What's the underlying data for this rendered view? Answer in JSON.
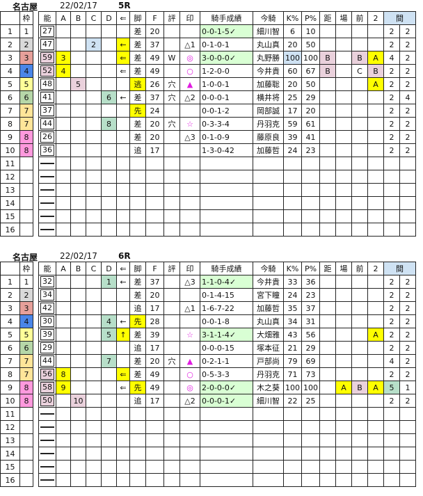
{
  "headers": [
    "",
    "枠",
    "",
    "能",
    "A",
    "B",
    "C",
    "D",
    "⇐",
    "脚",
    "F",
    "評",
    "印",
    "騎手成績",
    "今騎",
    "K%",
    "P%",
    "距",
    "場",
    "前",
    "2",
    "間"
  ],
  "colors": {
    "header_kan": "#cfe2f3",
    "waku": {
      "1": "#ffffff",
      "2": "#d9d9d9",
      "3": "#e6a09a",
      "4": "#4a86e8",
      "5": "#ffff99",
      "6": "#b6d7a8",
      "7": "#ffe599",
      "8": "#ff99dd"
    },
    "yellow": "#ffff00",
    "pink": "#ead1dc",
    "blue": "#cfe2f3",
    "green": "#b7dfc9",
    "seiseki": "#d9ffd4",
    "symbol": "#e01ce0"
  },
  "races": [
    {
      "venue": "名古屋",
      "date": "22/02/17",
      "race": "5R",
      "rows": [
        {
          "n": "1",
          "w": "1",
          "nou": "27",
          "kyaku": "差",
          "F": "20",
          "sei": "0-0-1-5✓",
          "kishu": "細川智",
          "K": "6",
          "P": "10",
          "k1": "2",
          "k2": "2",
          "hl": {
            "sei": "seiseki"
          }
        },
        {
          "n": "2",
          "w": "2",
          "nou": "47",
          "C": "2",
          "arr": "←",
          "kyaku": "差",
          "F": "37",
          "shi": "△1",
          "sei": "0-1-0-1",
          "kishu": "丸山真",
          "K": "20",
          "P": "50",
          "k1": "2",
          "k2": "2",
          "hl": {
            "C": "blue",
            "arr": "yellow"
          }
        },
        {
          "n": "3",
          "w": "3",
          "nou": "59",
          "A": "3",
          "arr": "⇐",
          "kyaku": "差",
          "F": "49",
          "hyo": "W",
          "shi": "◎",
          "sei": "3-0-0-0✓",
          "kishu": "丸野勝",
          "K": "100",
          "P": "100",
          "kyori": "B",
          "mae": "B",
          "ni": "A",
          "k1": "4",
          "k2": "2",
          "hl": {
            "nou": "pink",
            "A": "yellow",
            "arr": "yellow",
            "sei": "seiseki",
            "K": "blue",
            "kyori": "pink",
            "mae": "pink",
            "ni": "yellow"
          }
        },
        {
          "n": "4",
          "w": "4",
          "nou": "52",
          "A": "4",
          "arr": "⇐",
          "kyaku": "差",
          "F": "49",
          "shi": "○",
          "sei": "1-2-0-0",
          "kishu": "今井貴",
          "K": "60",
          "P": "67",
          "kyori": "B",
          "mae": "C",
          "ni": "B",
          "k1": "2",
          "k2": "2",
          "hl": {
            "nou": "pink",
            "A": "yellow",
            "kyori": "pink",
            "ni": "pink"
          }
        },
        {
          "n": "5",
          "w": "5",
          "nou": "48",
          "B": "5",
          "kyaku": "逃",
          "F": "26",
          "hyo": "穴",
          "shi": "▲",
          "sei": "1-0-0-1",
          "kishu": "加藤聡",
          "K": "20",
          "P": "50",
          "ni": "A",
          "k1": "2",
          "k2": "2",
          "hl": {
            "B": "pink",
            "kyaku": "yellow",
            "ni": "yellow"
          }
        },
        {
          "n": "6",
          "w": "6",
          "nou": "41",
          "D": "6",
          "arr": "←",
          "kyaku": "差",
          "F": "37",
          "hyo": "穴",
          "shi": "△2",
          "sei": "0-0-0-1",
          "kishu": "横井将",
          "K": "25",
          "P": "29",
          "k1": "2",
          "k2": "4",
          "hl": {
            "D": "green"
          }
        },
        {
          "n": "7",
          "w": "7",
          "nou": "37",
          "kyaku": "先",
          "F": "24",
          "sei": "0-0-1-2",
          "kishu": "岡部誠",
          "K": "17",
          "P": "20",
          "k1": "2",
          "k2": "2",
          "hl": {
            "kyaku": "yellow"
          }
        },
        {
          "n": "8",
          "w": "7",
          "nou": "44",
          "D": "8",
          "kyaku": "差",
          "F": "20",
          "hyo": "穴",
          "shi": "☆",
          "sei": "0-3-3-4",
          "kishu": "丹羽克",
          "K": "59",
          "P": "61",
          "k1": "2",
          "k2": "2",
          "hl": {
            "D": "green"
          }
        },
        {
          "n": "9",
          "w": "8",
          "nou": "26",
          "kyaku": "差",
          "F": "20",
          "shi": "△3",
          "sei": "0-1-0-9",
          "kishu": "藤原良",
          "K": "39",
          "P": "41",
          "k1": "2",
          "k2": "2",
          "hl": {}
        },
        {
          "n": "10",
          "w": "8",
          "nou": "36",
          "kyaku": "追",
          "F": "17",
          "sei": "1-3-0-42",
          "kishu": "加藤哲",
          "K": "24",
          "P": "23",
          "k1": "2",
          "k2": "2",
          "hl": {}
        },
        {
          "n": "11"
        },
        {
          "n": "12"
        },
        {
          "n": "13"
        },
        {
          "n": "14"
        },
        {
          "n": "15"
        },
        {
          "n": "16"
        }
      ]
    },
    {
      "venue": "名古屋",
      "date": "22/02/17",
      "race": "6R",
      "rows": [
        {
          "n": "1",
          "w": "1",
          "nou": "32",
          "D": "1",
          "arr": "←",
          "kyaku": "差",
          "F": "37",
          "shi": "△3",
          "sei": "1-1-0-4✓",
          "kishu": "今井貴",
          "K": "33",
          "P": "36",
          "k1": "2",
          "k2": "2",
          "hl": {
            "D": "green",
            "sei": "seiseki"
          }
        },
        {
          "n": "2",
          "w": "2",
          "nou": "34",
          "kyaku": "差",
          "F": "20",
          "sei": "0-1-4-15",
          "kishu": "宮下瞳",
          "K": "24",
          "P": "23",
          "k1": "2",
          "k2": "2",
          "hl": {}
        },
        {
          "n": "3",
          "w": "3",
          "nou": "42",
          "kyaku": "追",
          "F": "17",
          "shi": "△1",
          "sei": "1-6-7-22",
          "kishu": "加藤哲",
          "K": "35",
          "P": "37",
          "k1": "2",
          "k2": "2",
          "hl": {}
        },
        {
          "n": "4",
          "w": "4",
          "nou": "30",
          "D": "4",
          "arr": "←",
          "kyaku": "先",
          "F": "28",
          "sei": "0-0-1-8",
          "kishu": "丸山真",
          "K": "34",
          "P": "31",
          "k1": "2",
          "k2": "2",
          "hl": {
            "D": "green",
            "kyaku": "yellow"
          }
        },
        {
          "n": "5",
          "w": "5",
          "nou": "39",
          "D": "5",
          "arr": "↑",
          "kyaku": "差",
          "F": "39",
          "shi": "☆",
          "sei": "3-1-1-4✓",
          "kishu": "大畑雅",
          "K": "43",
          "P": "56",
          "ni": "A",
          "k1": "2",
          "k2": "2",
          "hl": {
            "D": "green",
            "arr": "yellow",
            "sei": "seiseki",
            "ni": "yellow"
          }
        },
        {
          "n": "6",
          "w": "6",
          "nou": "29",
          "kyaku": "追",
          "F": "17",
          "sei": "0-0-0-15",
          "kishu": "塚本征",
          "K": "21",
          "P": "29",
          "k1": "2",
          "k2": "2",
          "hl": {}
        },
        {
          "n": "7",
          "w": "7",
          "nou": "44",
          "D": "7",
          "kyaku": "差",
          "F": "20",
          "hyo": "穴",
          "shi": "▲",
          "sei": "0-2-1-1",
          "kishu": "戸部尚",
          "K": "79",
          "P": "69",
          "k1": "4",
          "k2": "2",
          "hl": {
            "D": "green"
          }
        },
        {
          "n": "8",
          "w": "7",
          "nou": "56",
          "A": "8",
          "arr": "⇐",
          "kyaku": "差",
          "F": "49",
          "shi": "○",
          "sei": "0-5-3-3",
          "kishu": "丹羽克",
          "K": "71",
          "P": "73",
          "k1": "2",
          "k2": "2",
          "hl": {
            "nou": "pink",
            "A": "yellow",
            "arr": "yellow"
          }
        },
        {
          "n": "9",
          "w": "8",
          "nou": "58",
          "A": "9",
          "arr": "⇐",
          "kyaku": "先",
          "F": "49",
          "shi": "◎",
          "sei": "2-0-0-0✓",
          "kishu": "木之葵",
          "K": "100",
          "P": "100",
          "ba": "A",
          "mae": "B",
          "ni": "A",
          "k1": "5",
          "k2": "1",
          "hl": {
            "nou": "pink",
            "A": "yellow",
            "kyaku": "yellow",
            "sei": "seiseki",
            "ba": "yellow",
            "mae": "pink",
            "ni": "yellow",
            "k1": "green"
          }
        },
        {
          "n": "10",
          "w": "8",
          "nou": "50",
          "B": "10",
          "kyaku": "追",
          "F": "17",
          "shi": "△2",
          "sei": "0-0-0-1✓",
          "kishu": "細川智",
          "K": "22",
          "P": "25",
          "k1": "2",
          "k2": "2",
          "hl": {
            "nou": "pink",
            "B": "pink",
            "sei": "seiseki"
          }
        },
        {
          "n": "11"
        },
        {
          "n": "12"
        },
        {
          "n": "13"
        },
        {
          "n": "14"
        },
        {
          "n": "15"
        },
        {
          "n": "16"
        }
      ]
    }
  ]
}
